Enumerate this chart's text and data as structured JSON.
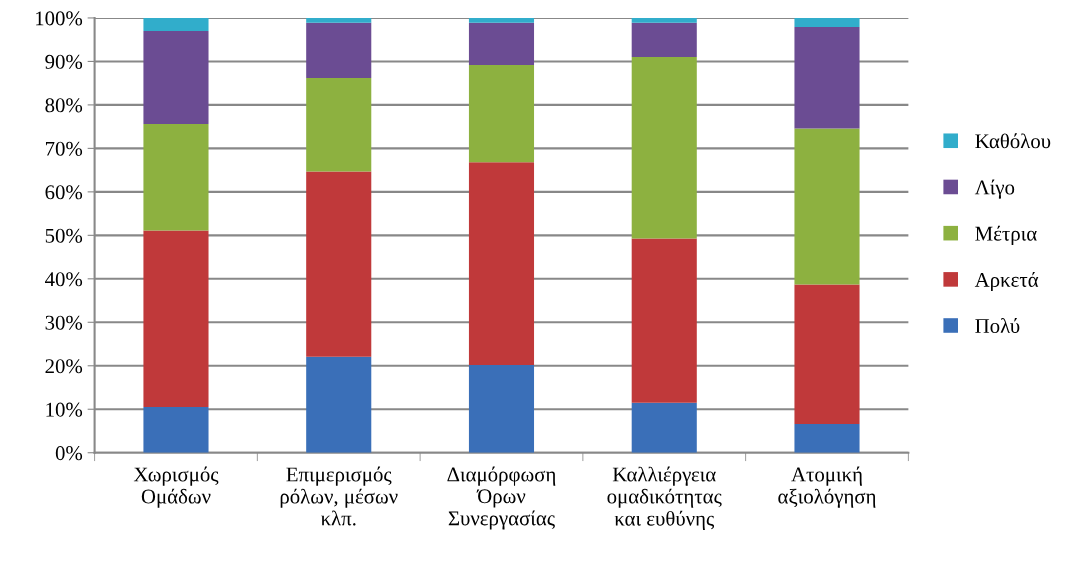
{
  "chart_data": {
    "type": "bar",
    "stacked": true,
    "categories": [
      "Χωρισμός\nΟμάδων",
      "Επιμερισμός\nρόλων, μέσων\nκλπ.",
      "Διαμόρφωση\nΌρων\nΣυνεργασίας",
      "Καλλιέργεια\nομαδικότητας\nκαι ευθύνης",
      "Ατομική\nαξιολόγηση"
    ],
    "series": [
      {
        "name": "Πολύ",
        "color": "#3a6fb8",
        "values": [
          10.5,
          22.1,
          20.2,
          11.5,
          6.6
        ]
      },
      {
        "name": "Αρκετά",
        "color": "#c0393a",
        "values": [
          40.6,
          42.6,
          46.6,
          37.8,
          32.1
        ]
      },
      {
        "name": "Μέτρια",
        "color": "#8db140",
        "values": [
          24.5,
          21.5,
          22.4,
          41.7,
          35.9
        ]
      },
      {
        "name": "Λίγο",
        "color": "#6b4c93",
        "values": [
          21.4,
          12.7,
          9.7,
          7.9,
          23.3
        ]
      },
      {
        "name": "Καθόλου",
        "color": "#31adcb",
        "values": [
          3.0,
          1.1,
          1.1,
          1.1,
          2.1
        ]
      }
    ],
    "ylim": [
      0,
      100
    ],
    "yticks": [
      {
        "value": 0,
        "label": "0%"
      },
      {
        "value": 10,
        "label": "10%"
      },
      {
        "value": 20,
        "label": "20%"
      },
      {
        "value": 30,
        "label": "30%"
      },
      {
        "value": 40,
        "label": "40%"
      },
      {
        "value": 50,
        "label": "50%"
      },
      {
        "value": 60,
        "label": "60%"
      },
      {
        "value": 70,
        "label": "70%"
      },
      {
        "value": 80,
        "label": "80%"
      },
      {
        "value": 90,
        "label": "90%"
      },
      {
        "value": 100,
        "label": "100%"
      }
    ],
    "grid": "y",
    "legend": "right"
  }
}
